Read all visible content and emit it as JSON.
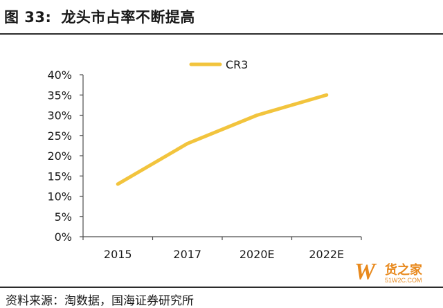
{
  "header": {
    "figure_number": "图 33:",
    "title": "龙头市占率不断提高"
  },
  "source": "资料来源：淘数据，国海证券研究所",
  "watermark": {
    "mark": "W",
    "text": "货之家",
    "url": "51W2C.COM"
  },
  "colors": {
    "line": "#f2c43d",
    "axis": "#4d4d4d",
    "rule": "#2b2b2b",
    "watermark": "#e8891d"
  },
  "chart_data": {
    "type": "line",
    "title": "",
    "xlabel": "",
    "ylabel": "",
    "categories": [
      "2015",
      "2017",
      "2020E",
      "2022E"
    ],
    "series": [
      {
        "name": "CR3",
        "values": [
          0.13,
          0.23,
          0.3,
          0.35
        ]
      }
    ],
    "y_ticks": [
      "0%",
      "5%",
      "10%",
      "15%",
      "20%",
      "25%",
      "30%",
      "35%",
      "40%"
    ],
    "ylim": [
      0,
      0.4
    ],
    "grid": false,
    "legend": "top-center"
  }
}
